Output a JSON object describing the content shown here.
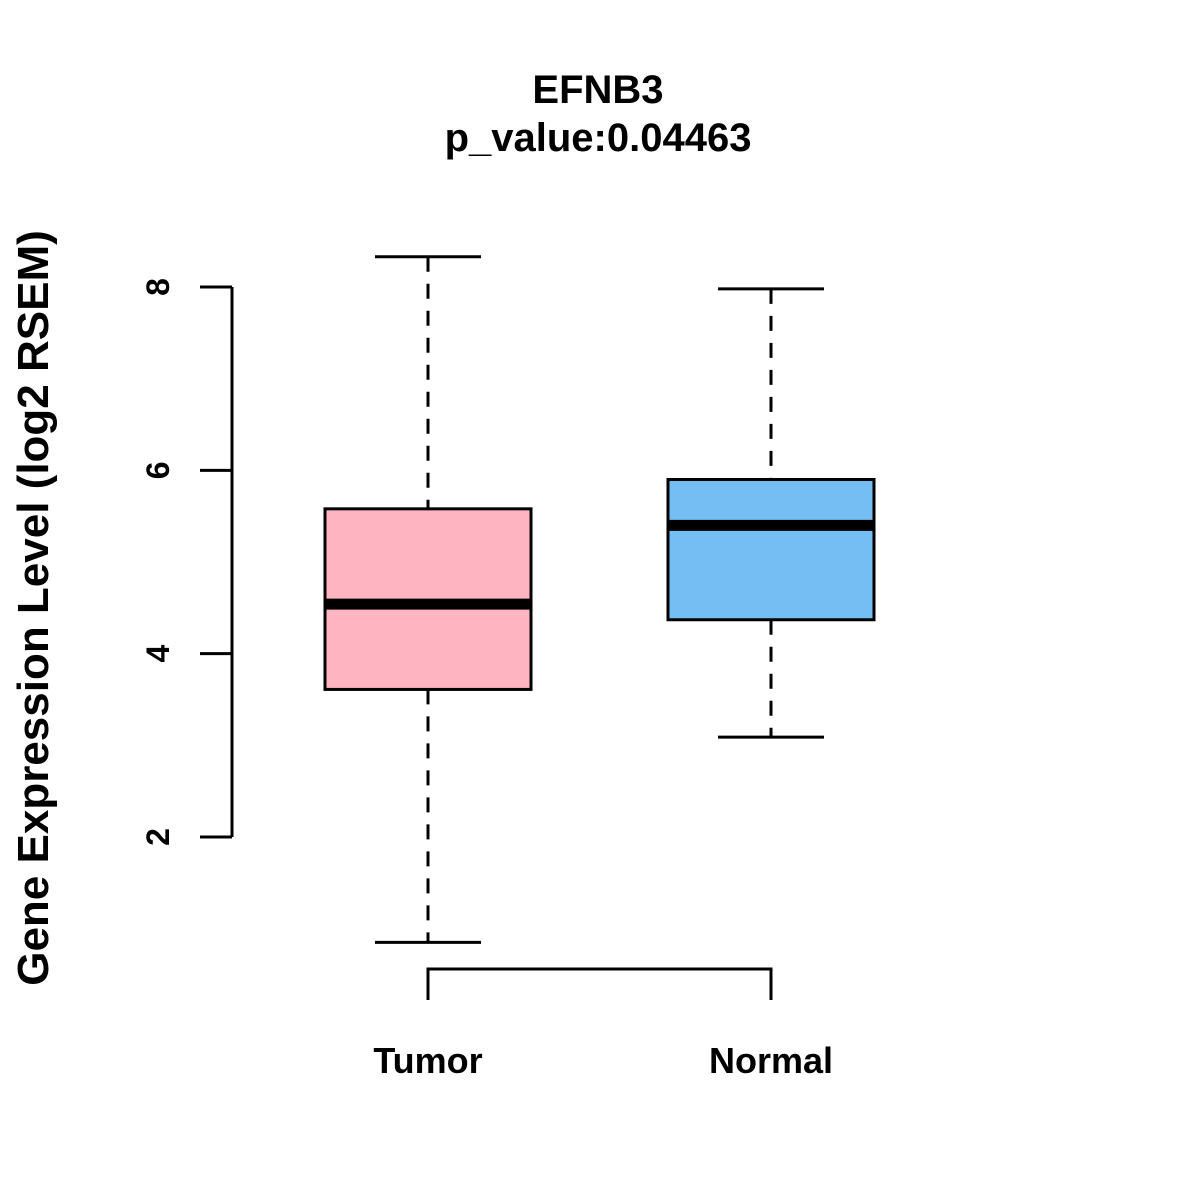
{
  "figure": {
    "background": "#ffffff",
    "line_color": "#000000"
  },
  "chart_data": {
    "type": "boxplot",
    "title": "EFNB3",
    "subtitle": "p_value:0.04463",
    "ylabel": "Gene Expression Level (log2 RSEM)",
    "xlabel": "",
    "categories": [
      "Tumor",
      "Normal"
    ],
    "y_axis": {
      "ticks": [
        2,
        4,
        6,
        8
      ],
      "tick_labels": [
        "2",
        "4",
        "6",
        "8"
      ],
      "shown_range": [
        2,
        8
      ]
    },
    "grid": false,
    "legend": "none",
    "series": [
      {
        "name": "Tumor",
        "color": "#FFB4C2",
        "whisker_low": 0.85,
        "q1": 3.61,
        "median": 4.54,
        "q3": 5.58,
        "whisker_high": 8.33
      },
      {
        "name": "Normal",
        "color": "#74BEF4",
        "whisker_low": 3.09,
        "q1": 4.37,
        "median": 5.4,
        "q3": 5.9,
        "whisker_high": 7.98
      }
    ]
  }
}
